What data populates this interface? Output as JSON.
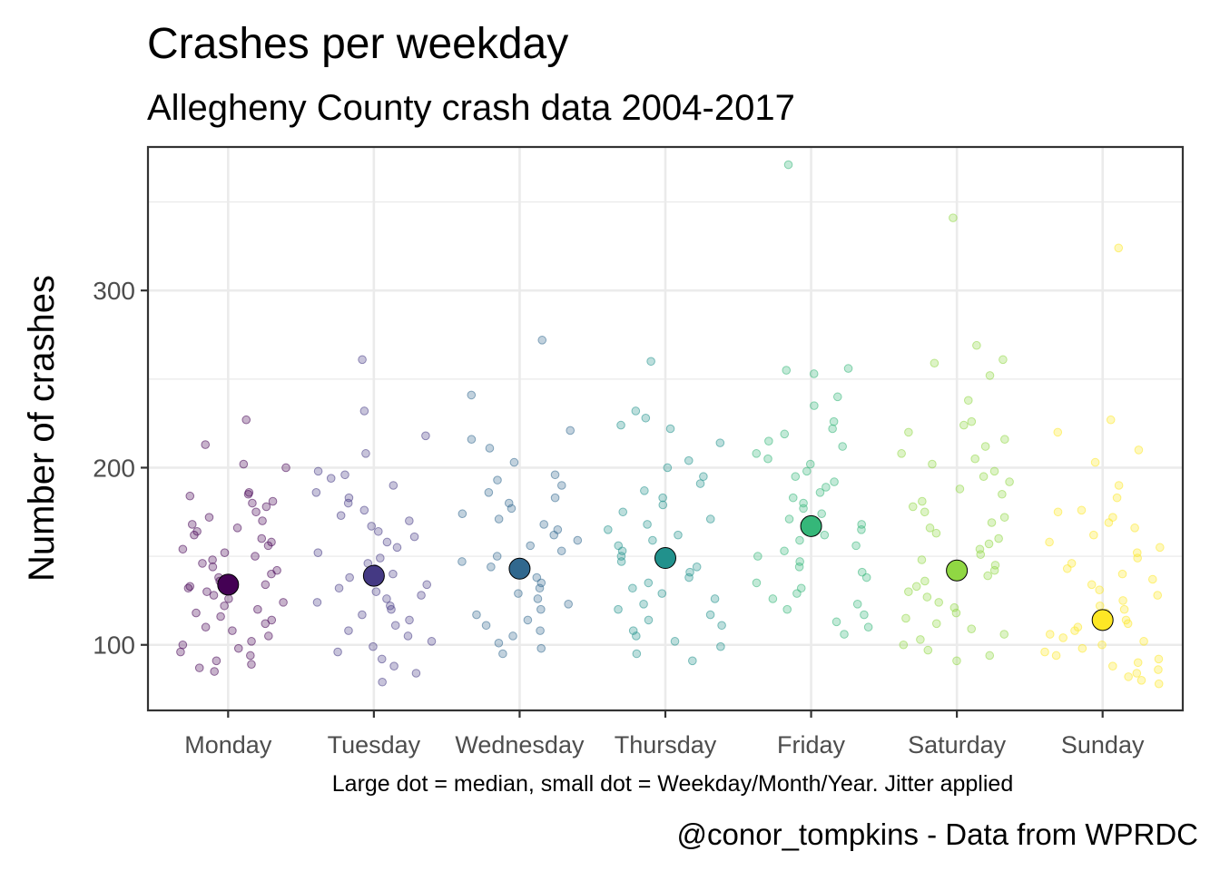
{
  "chart_data": {
    "type": "scatter",
    "title": "Crashes per weekday",
    "subtitle": "Allegheny County crash data 2004-2017",
    "xlabel": "Large dot = median, small dot = Weekday/Month/Year. Jitter applied",
    "ylabel": "Number of crashes",
    "caption": "@conor_tompkins - Data from WPRDC",
    "categories": [
      "Monday",
      "Tuesday",
      "Wednesday",
      "Thursday",
      "Friday",
      "Saturday",
      "Sunday"
    ],
    "ylim": [
      63,
      381
    ],
    "yticks": [
      100,
      200,
      300
    ],
    "grid": true,
    "legend": "none",
    "colors": [
      "#440154",
      "#443983",
      "#31688e",
      "#21918c",
      "#35b779",
      "#90d743",
      "#fde725"
    ],
    "medians": [
      134,
      139,
      143,
      149,
      167,
      142,
      114
    ],
    "points": [
      [
        227,
        213,
        202,
        200,
        186,
        185,
        184,
        181,
        180,
        178,
        175,
        172,
        170,
        168,
        166,
        164,
        162,
        160,
        158,
        156,
        154,
        152,
        150,
        148,
        146,
        144,
        142,
        140,
        138,
        136,
        134,
        133,
        132,
        130,
        128,
        126,
        124,
        122,
        120,
        118,
        116,
        114,
        112,
        110,
        108,
        105,
        102,
        100,
        98,
        96,
        94,
        91,
        89,
        87,
        85
      ],
      [
        261,
        232,
        218,
        208,
        198,
        196,
        194,
        190,
        186,
        183,
        180,
        176,
        173,
        170,
        167,
        164,
        161,
        158,
        155,
        152,
        149,
        146,
        143,
        140,
        138,
        136,
        134,
        132,
        130,
        128,
        126,
        124,
        122,
        120,
        117,
        114,
        111,
        108,
        105,
        102,
        99,
        96,
        92,
        88,
        84,
        79
      ],
      [
        272,
        241,
        221,
        216,
        211,
        203,
        196,
        193,
        190,
        186,
        183,
        180,
        177,
        174,
        171,
        168,
        165,
        162,
        159,
        156,
        153,
        150,
        147,
        144,
        141,
        138,
        135,
        132,
        129,
        126,
        123,
        120,
        117,
        114,
        111,
        108,
        105,
        101,
        98,
        95
      ],
      [
        260,
        232,
        228,
        224,
        222,
        214,
        204,
        200,
        195,
        191,
        187,
        183,
        179,
        175,
        171,
        168,
        165,
        162,
        159,
        156,
        153,
        150,
        147,
        144,
        141,
        138,
        135,
        132,
        129,
        126,
        123,
        120,
        117,
        114,
        111,
        108,
        105,
        102,
        99,
        95,
        91
      ],
      [
        371,
        256,
        255,
        253,
        240,
        235,
        226,
        222,
        219,
        215,
        212,
        208,
        205,
        202,
        198,
        195,
        192,
        189,
        186,
        183,
        180,
        177,
        174,
        171,
        168,
        165,
        162,
        159,
        156,
        153,
        150,
        147,
        144,
        141,
        138,
        135,
        132,
        129,
        126,
        123,
        120,
        117,
        113,
        110,
        106
      ],
      [
        341,
        269,
        261,
        259,
        252,
        238,
        226,
        224,
        220,
        216,
        212,
        208,
        205,
        202,
        198,
        195,
        192,
        188,
        185,
        181,
        178,
        175,
        172,
        169,
        166,
        163,
        160,
        157,
        154,
        151,
        148,
        145,
        142,
        139,
        136,
        133,
        130,
        127,
        124,
        121,
        118,
        115,
        112,
        109,
        106,
        103,
        100,
        97,
        94,
        91
      ],
      [
        324,
        227,
        220,
        210,
        203,
        190,
        183,
        176,
        175,
        172,
        169,
        166,
        162,
        158,
        155,
        152,
        149,
        146,
        143,
        140,
        137,
        134,
        131,
        128,
        125,
        122,
        120,
        118,
        116,
        114,
        112,
        110,
        108,
        106,
        104,
        102,
        100,
        98,
        96,
        94,
        92,
        90,
        88,
        86,
        84,
        82,
        80,
        78
      ]
    ]
  }
}
